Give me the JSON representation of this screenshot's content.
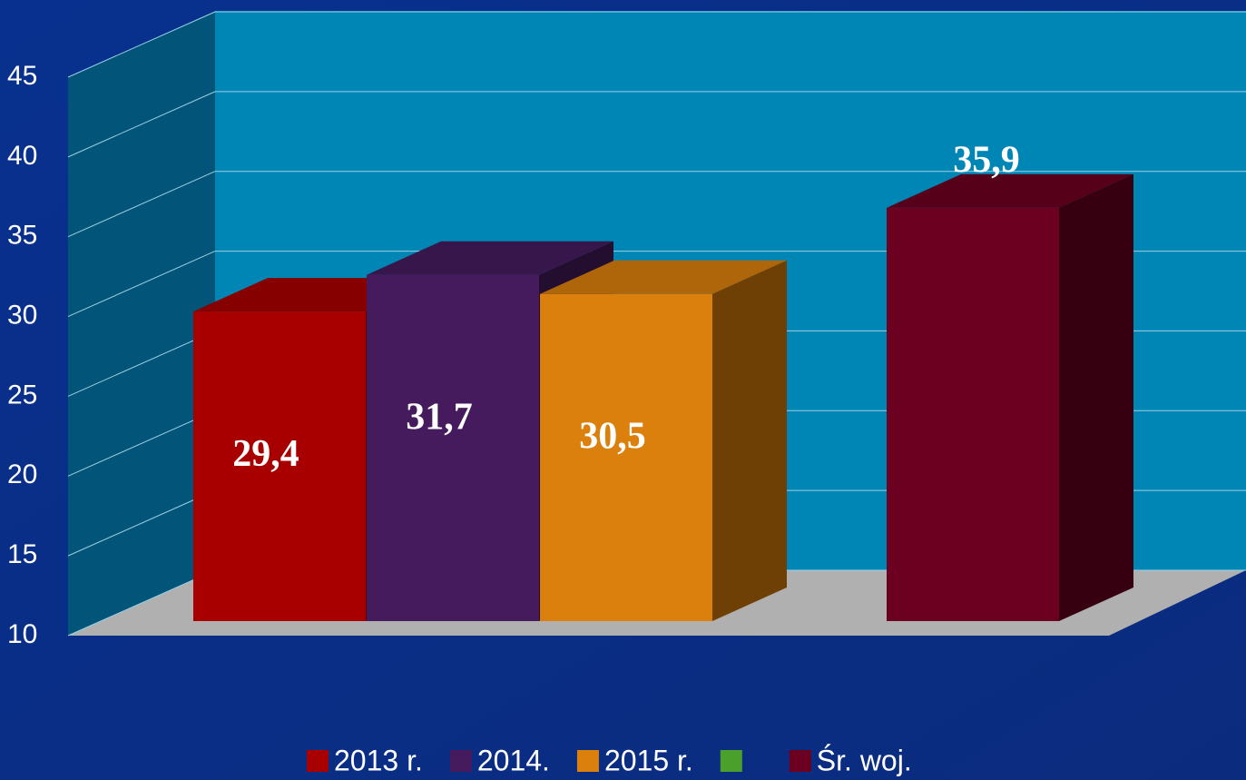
{
  "chart_data": {
    "type": "bar3d",
    "series": [
      {
        "name": "2013 r.",
        "color": "#a80000",
        "values": [
          29.4
        ],
        "value_labels": [
          "29,4"
        ]
      },
      {
        "name": "2014.",
        "color": "#451b5e",
        "values": [
          31.7
        ],
        "value_labels": [
          "31,7"
        ]
      },
      {
        "name": "2015 r.",
        "color": "#db800c",
        "values": [
          30.5
        ],
        "value_labels": [
          "30,5"
        ]
      },
      {
        "name": null,
        "color": "#4aa02a",
        "values": [
          null
        ]
      },
      {
        "name": "Śr. woj.",
        "color": "#6c0020",
        "values": [
          35.9
        ],
        "value_labels": [
          "35,9"
        ]
      }
    ],
    "ylim": [
      10,
      45
    ],
    "yticks": [
      10,
      15,
      20,
      25,
      30,
      35,
      40,
      45
    ],
    "grid": true
  }
}
